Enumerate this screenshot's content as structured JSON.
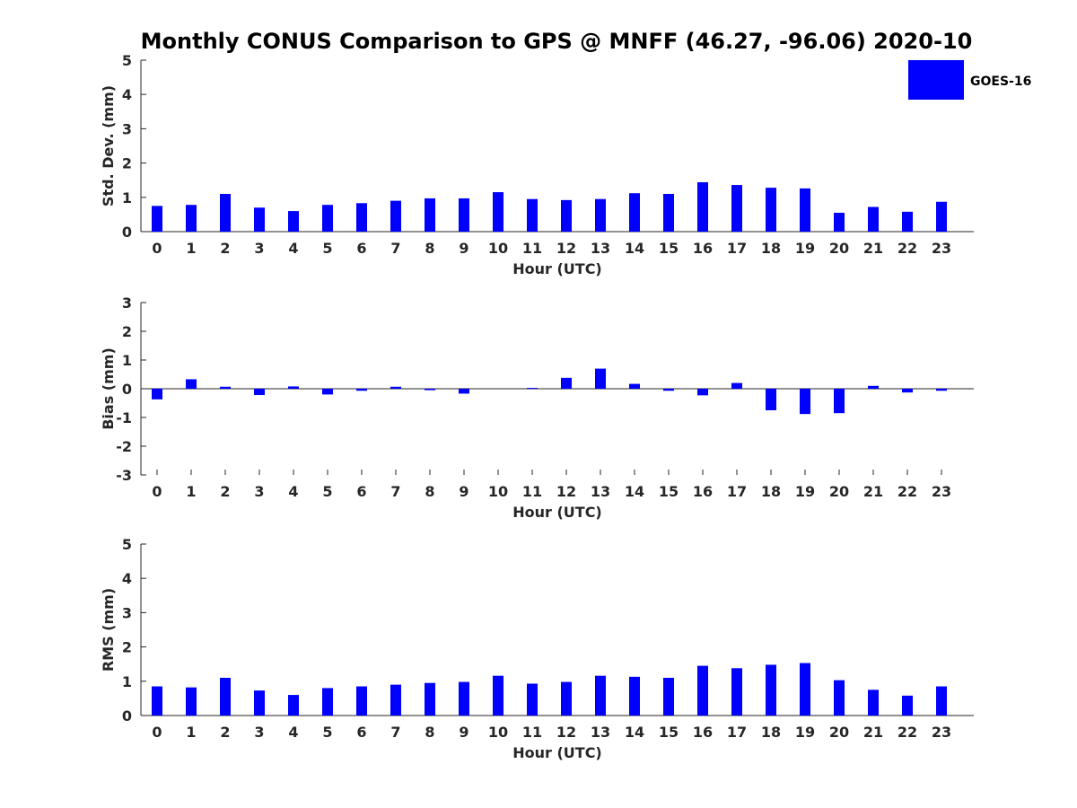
{
  "title": "Monthly CONUS Comparison to GPS @ MNFF (46.27, -96.06) 2020-10",
  "legend": {
    "label": "GOES-16",
    "color": "#0000ff"
  },
  "chart_data": [
    {
      "type": "bar",
      "name": "std-dev",
      "ylabel": "Std. Dev. (mm)",
      "xlabel": "Hour (UTC)",
      "ylim": [
        0,
        5
      ],
      "yticks": [
        0,
        1,
        2,
        3,
        4,
        5
      ],
      "categories": [
        "0",
        "1",
        "2",
        "3",
        "4",
        "5",
        "6",
        "7",
        "8",
        "9",
        "10",
        "11",
        "12",
        "13",
        "14",
        "15",
        "16",
        "17",
        "18",
        "19",
        "20",
        "21",
        "22",
        "23"
      ],
      "series": [
        {
          "name": "GOES-16",
          "color": "#0000ff",
          "values": [
            0.75,
            0.78,
            1.1,
            0.7,
            0.6,
            0.78,
            0.83,
            0.9,
            0.97,
            0.97,
            1.15,
            0.95,
            0.92,
            0.95,
            1.12,
            1.1,
            1.44,
            1.36,
            1.28,
            1.26,
            0.55,
            0.72,
            0.58,
            0.87
          ]
        }
      ]
    },
    {
      "type": "bar",
      "name": "bias",
      "ylabel": "Bias (mm)",
      "xlabel": "Hour (UTC)",
      "ylim": [
        -3,
        3
      ],
      "yticks": [
        -3,
        -2,
        -1,
        0,
        1,
        2,
        3
      ],
      "categories": [
        "0",
        "1",
        "2",
        "3",
        "4",
        "5",
        "6",
        "7",
        "8",
        "9",
        "10",
        "11",
        "12",
        "13",
        "14",
        "15",
        "16",
        "17",
        "18",
        "19",
        "20",
        "21",
        "22",
        "23"
      ],
      "series": [
        {
          "name": "GOES-16",
          "color": "#0000ff",
          "values": [
            -0.37,
            0.33,
            0.07,
            -0.22,
            0.08,
            -0.2,
            -0.07,
            0.07,
            -0.05,
            -0.17,
            0.0,
            0.03,
            0.38,
            0.7,
            0.17,
            -0.07,
            -0.23,
            0.2,
            -0.75,
            -0.88,
            -0.85,
            0.1,
            -0.13,
            -0.07
          ]
        }
      ]
    },
    {
      "type": "bar",
      "name": "rms",
      "ylabel": "RMS (mm)",
      "xlabel": "Hour (UTC)",
      "ylim": [
        0,
        5
      ],
      "yticks": [
        0,
        1,
        2,
        3,
        4,
        5
      ],
      "categories": [
        "0",
        "1",
        "2",
        "3",
        "4",
        "5",
        "6",
        "7",
        "8",
        "9",
        "10",
        "11",
        "12",
        "13",
        "14",
        "15",
        "16",
        "17",
        "18",
        "19",
        "20",
        "21",
        "22",
        "23"
      ],
      "series": [
        {
          "name": "GOES-16",
          "color": "#0000ff",
          "values": [
            0.85,
            0.82,
            1.1,
            0.73,
            0.6,
            0.8,
            0.85,
            0.9,
            0.95,
            0.98,
            1.16,
            0.93,
            0.98,
            1.16,
            1.13,
            1.1,
            1.45,
            1.38,
            1.48,
            1.53,
            1.03,
            0.75,
            0.58,
            0.85
          ]
        }
      ]
    }
  ]
}
